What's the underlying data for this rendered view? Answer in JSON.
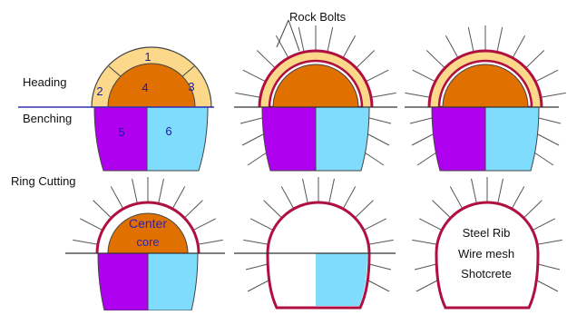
{
  "labels": {
    "rock_bolts": "Rock Bolts",
    "heading": "Heading",
    "benching": "Benching",
    "ring_cutting": "Ring Cutting",
    "center_line1": "Center",
    "center_line2": "core",
    "steel_rib": "Steel Rib",
    "wire_mesh": "Wire mesh",
    "shotcrete": "Shotcrete"
  },
  "section_numbers": [
    "1",
    "2",
    "3",
    "4",
    "5",
    "6"
  ],
  "colors": {
    "crown_ring": "#fcd98a",
    "core": "#e07000",
    "bench_left": "#b000f0",
    "bench_right": "#80dcfc",
    "lining": "#b01040",
    "bolt": "#555555",
    "outline": "#444444",
    "number_text": "#1a1aa0",
    "heading_line": "#3030b0"
  }
}
